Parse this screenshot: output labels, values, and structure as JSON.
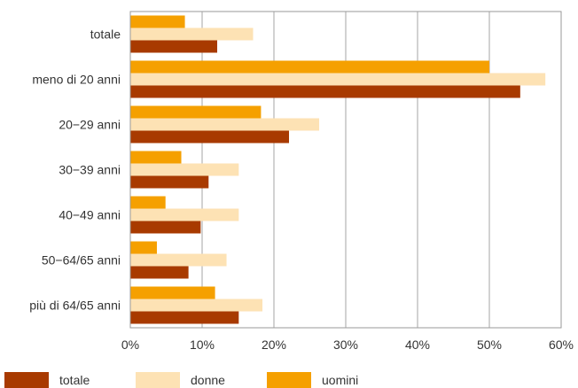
{
  "chart_data": {
    "type": "bar",
    "orientation": "horizontal",
    "categories": [
      "totale",
      "meno di 20 anni",
      "20−29 anni",
      "30−39 anni",
      "40−49 anni",
      "50−64/65 anni",
      "più di 64/65 anni"
    ],
    "series": [
      {
        "name": "uomini",
        "color": "#f5a000",
        "values": [
          7.6,
          50.0,
          18.2,
          7.1,
          4.9,
          3.7,
          11.8
        ]
      },
      {
        "name": "donne",
        "color": "#fde2b4",
        "values": [
          17.1,
          57.8,
          26.3,
          15.1,
          15.1,
          13.4,
          18.4
        ]
      },
      {
        "name": "totale",
        "color": "#a83a00",
        "values": [
          12.1,
          54.3,
          22.1,
          10.9,
          9.8,
          8.1,
          15.1
        ]
      }
    ],
    "xlim": [
      0,
      60
    ],
    "xticks": [
      "0%",
      "10%",
      "20%",
      "30%",
      "40%",
      "50%",
      "60%"
    ],
    "grid": true,
    "legend": {
      "position": "bottom",
      "entries": [
        "totale",
        "donne",
        "uomini"
      ]
    }
  }
}
